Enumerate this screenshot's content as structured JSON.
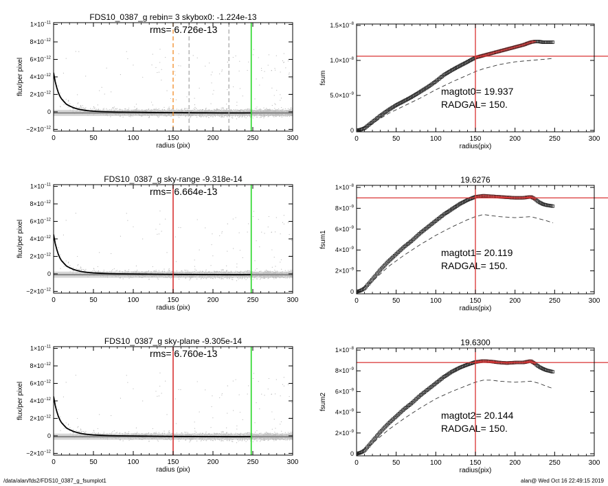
{
  "footer": {
    "path": "/data/alan/fds2/FDS10_0387_g_fsumplot1",
    "stamp": "alan@  Wed Oct 16 22:49:15 2019"
  },
  "colors": {
    "scatter": "#bdbdbd",
    "profile": "#000000",
    "orange": "#f08a24",
    "gray_dash": "#a8a8a8",
    "green": "#22d622",
    "red": "#d93030"
  },
  "chart_data": [
    {
      "type": "scatter",
      "title": "FDS10_0387_g rebin= 3    skybox0: -1.224e-13",
      "annotation": "rms= 6.726e-13",
      "xlabel": "radius (pix)",
      "ylabel": "flux/per pixel",
      "xlim": [
        0,
        300
      ],
      "ylim": [
        -2.2e-12,
        1.02e-11
      ],
      "xticks": [
        "0",
        "50",
        "100",
        "150",
        "200",
        "250",
        "300"
      ],
      "yticks": [
        {
          "m": "−2×10",
          "e": "−12",
          "v": -2e-12
        },
        {
          "m": "0",
          "e": "",
          "v": 0
        },
        {
          "m": "2×10",
          "e": "−12",
          "v": 2e-12
        },
        {
          "m": "4×10",
          "e": "−12",
          "v": 4e-12
        },
        {
          "m": "6×10",
          "e": "−12",
          "v": 6e-12
        },
        {
          "m": "8×10",
          "e": "−12",
          "v": 8e-12
        },
        {
          "m": "1×10",
          "e": "−11",
          "v": 1e-11
        }
      ],
      "sky_level": -1.224e-13,
      "profile": {
        "x": [
          0,
          2,
          4,
          6,
          8,
          10,
          13,
          16,
          20,
          25,
          30,
          35,
          40,
          45,
          50,
          60,
          70,
          80,
          90,
          100,
          110,
          120,
          130,
          140,
          150,
          160,
          170,
          180,
          190,
          200,
          210,
          220,
          230,
          240,
          248
        ],
        "y": [
          4.6e-12,
          3.6e-12,
          2.9e-12,
          2.3e-12,
          1.9e-12,
          1.6e-12,
          1.3e-12,
          1e-12,
          8e-13,
          6e-13,
          4.6e-13,
          3.6e-13,
          2.9e-13,
          2.4e-13,
          2e-13,
          1.5e-13,
          1.2e-13,
          1e-13,
          9e-14,
          8e-14,
          7e-14,
          6e-14,
          5e-14,
          4e-14,
          3.5e-14,
          3e-14,
          2.5e-14,
          2e-14,
          1.5e-14,
          1e-14,
          5e-15,
          0,
          0,
          0,
          0
        ]
      },
      "vlines": [
        {
          "x": 150,
          "color": "orange",
          "dash": true
        },
        {
          "x": 170,
          "color": "gray_dash",
          "dash": true
        },
        {
          "x": 220,
          "color": "gray_dash",
          "dash": true
        },
        {
          "x": 248,
          "color": "green",
          "dash": false
        }
      ]
    },
    {
      "type": "line",
      "title": "",
      "annotations": [
        "magtot0=  19.937",
        "RADGAL=    150."
      ],
      "xlabel": "radius(pix)",
      "ylabel": "fsum",
      "xlim": [
        0,
        300
      ],
      "ylim": [
        -2e-10,
        1.52e-08
      ],
      "xticks": [
        "0",
        "50",
        "100",
        "150",
        "200",
        "250",
        "300"
      ],
      "yticks": [
        {
          "m": "0",
          "e": "",
          "v": 0
        },
        {
          "m": "5.0×10",
          "e": "−9",
          "v": 5e-09
        },
        {
          "m": "1.0×10",
          "e": "−8",
          "v": 1e-08
        },
        {
          "m": "1.5×10",
          "e": "−8",
          "v": 1.5e-08
        }
      ],
      "hline": 1.06e-08,
      "vline": 150,
      "curve": {
        "x": [
          0,
          5,
          10,
          20,
          30,
          40,
          50,
          60,
          70,
          80,
          90,
          100,
          110,
          120,
          130,
          140,
          150,
          160,
          170,
          180,
          190,
          200,
          210,
          220,
          225,
          230,
          235,
          240,
          248
        ],
        "y": [
          0,
          1e-10,
          3e-10,
          1.2e-09,
          2.1e-09,
          2.9e-09,
          3.6e-09,
          4.2e-09,
          4.8e-09,
          5.5e-09,
          6.2e-09,
          7e-09,
          7.9e-09,
          8.6e-09,
          9.2e-09,
          9.8e-09,
          1.04e-08,
          1.07e-08,
          1.1e-08,
          1.13e-08,
          1.16e-08,
          1.19e-08,
          1.22e-08,
          1.26e-08,
          1.27e-08,
          1.27e-08,
          1.26e-08,
          1.26e-08,
          1.26e-08
        ]
      },
      "dashed": {
        "x": [
          0,
          20,
          40,
          60,
          80,
          100,
          120,
          140,
          150,
          160,
          170,
          180,
          190,
          200,
          210,
          220,
          230,
          240,
          248
        ],
        "y": [
          0,
          1e-09,
          2.4e-09,
          3.5e-09,
          4.6e-09,
          5.8e-09,
          6.9e-09,
          7.9e-09,
          8.4e-09,
          8.8e-09,
          9.1e-09,
          9.4e-09,
          9.6e-09,
          9.8e-09,
          9.9e-09,
          1e-08,
          1.01e-08,
          1.02e-08,
          1.03e-08
        ]
      }
    },
    {
      "type": "scatter",
      "title": "FDS10_0387_g sky-range -9.318e-14",
      "annotation": "rms= 6.664e-13",
      "xlabel": "radius (pix)",
      "ylabel": "flux/per pixel",
      "xlim": [
        0,
        300
      ],
      "ylim": [
        -2.2e-12,
        1.02e-11
      ],
      "xticks": [
        "0",
        "50",
        "100",
        "150",
        "200",
        "250",
        "300"
      ],
      "yticks": [
        {
          "m": "−2×10",
          "e": "−12",
          "v": -2e-12
        },
        {
          "m": "0",
          "e": "",
          "v": 0
        },
        {
          "m": "2×10",
          "e": "−12",
          "v": 2e-12
        },
        {
          "m": "4×10",
          "e": "−12",
          "v": 4e-12
        },
        {
          "m": "6×10",
          "e": "−12",
          "v": 6e-12
        },
        {
          "m": "8×10",
          "e": "−12",
          "v": 8e-12
        },
        {
          "m": "1×10",
          "e": "−11",
          "v": 1e-11
        }
      ],
      "sky_level": -9.318e-14,
      "profile": {
        "x": [
          0,
          2,
          4,
          6,
          8,
          10,
          13,
          16,
          20,
          25,
          30,
          35,
          40,
          45,
          50,
          60,
          70,
          80,
          90,
          100,
          110,
          120,
          130,
          140,
          150,
          160,
          170,
          180,
          190,
          200,
          210,
          220,
          230,
          240,
          248
        ],
        "y": [
          4.6e-12,
          3.6e-12,
          2.9e-12,
          2.3e-12,
          1.9e-12,
          1.6e-12,
          1.3e-12,
          1e-12,
          8e-13,
          6e-13,
          4.6e-13,
          3.6e-13,
          2.9e-13,
          2.4e-13,
          2e-13,
          1.5e-13,
          1.2e-13,
          1e-13,
          9e-14,
          8e-14,
          7e-14,
          6e-14,
          5e-14,
          4e-14,
          3.5e-14,
          3e-14,
          2.5e-14,
          2e-14,
          1.5e-14,
          1e-14,
          5e-15,
          0,
          0,
          0,
          0
        ]
      },
      "vlines": [
        {
          "x": 150,
          "color": "red",
          "dash": false
        },
        {
          "x": 248,
          "color": "green",
          "dash": false
        }
      ]
    },
    {
      "type": "line",
      "title": "19.6276",
      "annotations": [
        "magtot1=  20.119",
        "RADGAL=    150."
      ],
      "xlabel": "radius(pix)",
      "ylabel": "fsum1",
      "xlim": [
        0,
        300
      ],
      "ylim": [
        -2e-10,
        1.02e-08
      ],
      "xticks": [
        "0",
        "50",
        "100",
        "150",
        "200",
        "250",
        "300"
      ],
      "yticks": [
        {
          "m": "0",
          "e": "",
          "v": 0
        },
        {
          "m": "2×10",
          "e": "−9",
          "v": 2e-09
        },
        {
          "m": "4×10",
          "e": "−9",
          "v": 4e-09
        },
        {
          "m": "6×10",
          "e": "−9",
          "v": 6e-09
        },
        {
          "m": "8×10",
          "e": "−9",
          "v": 8e-09
        },
        {
          "m": "1×10",
          "e": "−8",
          "v": 1e-08
        }
      ],
      "hline": 9e-09,
      "vline": 150,
      "curve": {
        "x": [
          0,
          5,
          10,
          20,
          30,
          40,
          50,
          60,
          70,
          80,
          90,
          100,
          110,
          120,
          130,
          140,
          150,
          160,
          170,
          180,
          190,
          200,
          210,
          220,
          225,
          230,
          235,
          240,
          248
        ],
        "y": [
          0,
          1e-10,
          3e-10,
          1.2e-09,
          2.1e-09,
          2.9e-09,
          3.6e-09,
          4.3e-09,
          4.9e-09,
          5.6e-09,
          6.2e-09,
          6.8e-09,
          7.4e-09,
          7.9e-09,
          8.4e-09,
          8.8e-09,
          9.1e-09,
          9.2e-09,
          9.15e-09,
          9.1e-09,
          9.05e-09,
          9e-09,
          9e-09,
          9.1e-09,
          8.9e-09,
          8.6e-09,
          8.4e-09,
          8.3e-09,
          8.2e-09
        ]
      },
      "dashed": {
        "x": [
          0,
          20,
          40,
          60,
          80,
          100,
          120,
          140,
          150,
          160,
          170,
          180,
          190,
          200,
          210,
          220,
          230,
          240,
          248
        ],
        "y": [
          0,
          1e-09,
          2.4e-09,
          3.5e-09,
          4.5e-09,
          5.4e-09,
          6.2e-09,
          6.9e-09,
          7.2e-09,
          7.4e-09,
          7.3e-09,
          7.2e-09,
          7.15e-09,
          7.1e-09,
          7.15e-09,
          7.2e-09,
          7e-09,
          6.8e-09,
          6.6e-09
        ]
      }
    },
    {
      "type": "scatter",
      "title": "FDS10_0387_g sky-plane -9.305e-14",
      "annotation": "rms= 6.760e-13",
      "xlabel": "radius (pix)",
      "ylabel": "flux/per pixel",
      "xlim": [
        0,
        300
      ],
      "ylim": [
        -2.2e-12,
        1.02e-11
      ],
      "xticks": [
        "0",
        "50",
        "100",
        "150",
        "200",
        "250",
        "300"
      ],
      "yticks": [
        {
          "m": "−2×10",
          "e": "−12",
          "v": -2e-12
        },
        {
          "m": "0",
          "e": "",
          "v": 0
        },
        {
          "m": "2×10",
          "e": "−12",
          "v": 2e-12
        },
        {
          "m": "4×10",
          "e": "−12",
          "v": 4e-12
        },
        {
          "m": "6×10",
          "e": "−12",
          "v": 6e-12
        },
        {
          "m": "8×10",
          "e": "−12",
          "v": 8e-12
        },
        {
          "m": "1×10",
          "e": "−11",
          "v": 1e-11
        }
      ],
      "sky_level": -9.305e-14,
      "profile": {
        "x": [
          0,
          2,
          4,
          6,
          8,
          10,
          13,
          16,
          20,
          25,
          30,
          35,
          40,
          45,
          50,
          60,
          70,
          80,
          90,
          100,
          110,
          120,
          130,
          140,
          150,
          160,
          170,
          180,
          190,
          200,
          210,
          220,
          230,
          240,
          248
        ],
        "y": [
          4.6e-12,
          3.6e-12,
          2.9e-12,
          2.3e-12,
          1.9e-12,
          1.6e-12,
          1.3e-12,
          1e-12,
          8e-13,
          6e-13,
          4.6e-13,
          3.6e-13,
          2.9e-13,
          2.4e-13,
          2e-13,
          1.5e-13,
          1.2e-13,
          1e-13,
          9e-14,
          8e-14,
          7e-14,
          6e-14,
          5e-14,
          4e-14,
          3.5e-14,
          3e-14,
          2.5e-14,
          2e-14,
          1.5e-14,
          1e-14,
          5e-15,
          0,
          0,
          0,
          0
        ]
      },
      "vlines": [
        {
          "x": 150,
          "color": "red",
          "dash": false
        },
        {
          "x": 248,
          "color": "green",
          "dash": false
        }
      ]
    },
    {
      "type": "line",
      "title": "19.6300",
      "annotations": [
        "magtot2=  20.144",
        "RADGAL=    150."
      ],
      "xlabel": "radius(pix)",
      "ylabel": "fsum2",
      "xlim": [
        0,
        300
      ],
      "ylim": [
        -2e-10,
        1.02e-08
      ],
      "xticks": [
        "0",
        "50",
        "100",
        "150",
        "200",
        "250",
        "300"
      ],
      "yticks": [
        {
          "m": "0",
          "e": "",
          "v": 0
        },
        {
          "m": "2×10",
          "e": "−9",
          "v": 2e-09
        },
        {
          "m": "4×10",
          "e": "−9",
          "v": 4e-09
        },
        {
          "m": "6×10",
          "e": "−9",
          "v": 6e-09
        },
        {
          "m": "8×10",
          "e": "−9",
          "v": 8e-09
        },
        {
          "m": "1×10",
          "e": "−8",
          "v": 1e-08
        }
      ],
      "hline": 8.8e-09,
      "vline": 150,
      "curve": {
        "x": [
          0,
          5,
          10,
          20,
          30,
          40,
          50,
          60,
          70,
          80,
          90,
          100,
          110,
          120,
          130,
          140,
          150,
          160,
          170,
          180,
          190,
          200,
          210,
          220,
          225,
          230,
          235,
          240,
          248
        ],
        "y": [
          0,
          1e-10,
          3e-10,
          1.2e-09,
          2.1e-09,
          2.9e-09,
          3.6e-09,
          4.3e-09,
          4.9e-09,
          5.6e-09,
          6.2e-09,
          6.8e-09,
          7.4e-09,
          7.9e-09,
          8.3e-09,
          8.6e-09,
          8.85e-09,
          8.95e-09,
          8.9e-09,
          8.8e-09,
          8.75e-09,
          8.8e-09,
          8.8e-09,
          8.95e-09,
          8.7e-09,
          8.4e-09,
          8.2e-09,
          8.05e-09,
          7.9e-09
        ]
      },
      "dashed": {
        "x": [
          0,
          20,
          40,
          60,
          80,
          100,
          120,
          140,
          150,
          160,
          170,
          180,
          190,
          200,
          210,
          220,
          230,
          240,
          248
        ],
        "y": [
          0,
          1e-09,
          2.3e-09,
          3.4e-09,
          4.4e-09,
          5.3e-09,
          6e-09,
          6.6e-09,
          6.9e-09,
          7.1e-09,
          7.1e-09,
          7e-09,
          6.95e-09,
          6.9e-09,
          6.95e-09,
          7e-09,
          6.8e-09,
          6.5e-09,
          6.3e-09
        ]
      }
    }
  ]
}
